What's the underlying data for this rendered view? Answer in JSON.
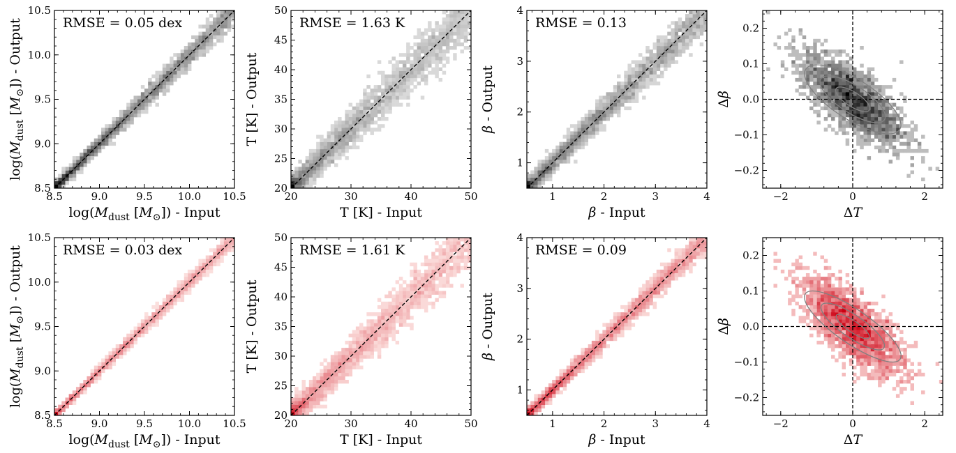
{
  "figure": {
    "colors": {
      "row1_map": "#000000",
      "row2_map": "#d62728",
      "diagonal": "#000000",
      "contour": "#808080"
    }
  },
  "chart_data": [
    {
      "type": "heatmap",
      "row": 0,
      "col": 0,
      "colormap": "greys",
      "annotation": "RMSE = 0.05 dex",
      "xlabel": "log(M_dust [M_⊙]) - Input",
      "ylabel": "log(M_dust [M_⊙]) - Output",
      "xlim": [
        8.5,
        10.5
      ],
      "ylim": [
        8.5,
        10.5
      ],
      "xticks": [
        8.5,
        9.0,
        9.5,
        10.0,
        10.5
      ],
      "xtick_labels": [
        "8.5",
        "9.0",
        "9.5",
        "10.0",
        "10.5"
      ],
      "yticks": [
        8.5,
        9.0,
        9.5,
        10.0,
        10.5
      ],
      "ytick_labels": [
        "8.5",
        "9.0",
        "9.5",
        "10.0",
        "10.5"
      ],
      "reference_line": "y = x (dashed)",
      "scatter_width": 0.05
    },
    {
      "type": "heatmap",
      "row": 0,
      "col": 1,
      "colormap": "greys",
      "annotation": "RMSE = 1.63 K",
      "xlabel": "T [K] - Input",
      "ylabel": "T [K] - Output",
      "xlim": [
        20,
        50
      ],
      "ylim": [
        20,
        50
      ],
      "xticks": [
        20,
        30,
        40,
        50
      ],
      "xtick_labels": [
        "20",
        "30",
        "40",
        "50"
      ],
      "yticks": [
        20,
        25,
        30,
        35,
        40,
        45,
        50
      ],
      "ytick_labels": [
        "20",
        "25",
        "30",
        "35",
        "40",
        "45",
        "50"
      ],
      "reference_line": "y = x (dashed)",
      "scatter_width": 1.63
    },
    {
      "type": "heatmap",
      "row": 0,
      "col": 2,
      "colormap": "greys",
      "annotation": "RMSE = 0.13",
      "xlabel": "β - Input",
      "ylabel": "β - Output",
      "xlim": [
        0.5,
        4
      ],
      "ylim": [
        0.5,
        4
      ],
      "xticks": [
        1,
        2,
        3,
        4
      ],
      "xtick_labels": [
        "1",
        "2",
        "3",
        "4"
      ],
      "yticks": [
        1,
        2,
        3,
        4
      ],
      "ytick_labels": [
        "1",
        "2",
        "3",
        "4"
      ],
      "reference_line": "y = x (dashed)",
      "scatter_width": 0.13
    },
    {
      "type": "heatmap",
      "row": 0,
      "col": 3,
      "colormap": "greys",
      "xlabel": "ΔT",
      "ylabel": "Δβ",
      "xlim": [
        -2.5,
        2.5
      ],
      "ylim": [
        -0.25,
        0.25
      ],
      "xticks": [
        -2,
        0,
        2
      ],
      "xtick_labels": [
        "−2",
        "0",
        "2"
      ],
      "yticks": [
        -0.2,
        -0.1,
        0.0,
        0.1,
        0.2
      ],
      "ytick_labels": [
        "−0.2",
        "−0.1",
        "0.0",
        "0.1",
        "0.2"
      ],
      "reference_lines": [
        "x = 0 (dashed)",
        "y = 0 (dashed)"
      ],
      "contours": [
        {
          "level": 1,
          "rx": 0.55,
          "ry": 0.045
        },
        {
          "level": 2,
          "rx": 1.05,
          "ry": 0.085
        },
        {
          "level": 3,
          "rx": 1.55,
          "ry": 0.125
        }
      ],
      "contour_center": [
        0.0,
        0.0
      ],
      "contour_slope": -0.065
    },
    {
      "type": "heatmap",
      "row": 1,
      "col": 0,
      "colormap": "reds",
      "annotation": "RMSE = 0.03 dex",
      "xlabel": "log(M_dust [M_⊙]) - Input",
      "ylabel": "log(M_dust [M_⊙]) - Output",
      "xlim": [
        8.5,
        10.5
      ],
      "ylim": [
        8.5,
        10.5
      ],
      "xticks": [
        8.5,
        9.0,
        9.5,
        10.0,
        10.5
      ],
      "xtick_labels": [
        "8.5",
        "9.0",
        "9.5",
        "10.0",
        "10.5"
      ],
      "yticks": [
        8.5,
        9.0,
        9.5,
        10.0,
        10.5
      ],
      "ytick_labels": [
        "8.5",
        "9.0",
        "9.5",
        "10.0",
        "10.5"
      ],
      "reference_line": "y = x (dashed)",
      "scatter_width": 0.03
    },
    {
      "type": "heatmap",
      "row": 1,
      "col": 1,
      "colormap": "reds",
      "annotation": "RMSE = 1.61 K",
      "xlabel": "T [K] - Input",
      "ylabel": "T [K] - Output",
      "xlim": [
        20,
        50
      ],
      "ylim": [
        20,
        50
      ],
      "xticks": [
        20,
        30,
        40,
        50
      ],
      "xtick_labels": [
        "20",
        "30",
        "40",
        "50"
      ],
      "yticks": [
        20,
        25,
        30,
        35,
        40,
        45,
        50
      ],
      "ytick_labels": [
        "20",
        "25",
        "30",
        "35",
        "40",
        "45",
        "50"
      ],
      "reference_line": "y = x (dashed)",
      "scatter_width": 1.61
    },
    {
      "type": "heatmap",
      "row": 1,
      "col": 2,
      "colormap": "reds",
      "annotation": "RMSE = 0.09",
      "xlabel": "β - Input",
      "ylabel": "β - Output",
      "xlim": [
        0.5,
        4
      ],
      "ylim": [
        0.5,
        4
      ],
      "xticks": [
        1,
        2,
        3,
        4
      ],
      "xtick_labels": [
        "1",
        "2",
        "3",
        "4"
      ],
      "yticks": [
        1,
        2,
        3,
        4
      ],
      "ytick_labels": [
        "1",
        "2",
        "3",
        "4"
      ],
      "reference_line": "y = x (dashed)",
      "scatter_width": 0.09
    },
    {
      "type": "heatmap",
      "row": 1,
      "col": 3,
      "colormap": "reds",
      "xlabel": "ΔT",
      "ylabel": "Δβ",
      "xlim": [
        -2.5,
        2.5
      ],
      "ylim": [
        -0.25,
        0.25
      ],
      "xticks": [
        -2,
        0,
        2
      ],
      "xtick_labels": [
        "−2",
        "0",
        "2"
      ],
      "yticks": [
        -0.2,
        -0.1,
        0.0,
        0.1,
        0.2
      ],
      "ytick_labels": [
        "−0.2",
        "−0.1",
        "0.0",
        "0.1",
        "0.2"
      ],
      "reference_lines": [
        "x = 0 (dashed)",
        "y = 0 (dashed)"
      ],
      "contours": [
        {
          "level": 1,
          "rx": 0.55,
          "ry": 0.035
        },
        {
          "level": 2,
          "rx": 1.05,
          "ry": 0.07
        },
        {
          "level": 3,
          "rx": 1.6,
          "ry": 0.105
        }
      ],
      "contour_center": [
        0.0,
        0.0
      ],
      "contour_slope": -0.07
    }
  ]
}
